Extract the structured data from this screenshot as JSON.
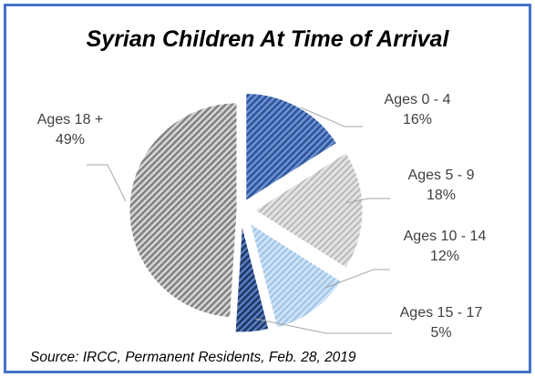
{
  "chart_data": {
    "type": "pie",
    "title": "Syrian Children At Time of Arrival",
    "source": "Source: IRCC, Permanent Residents, Feb. 28, 2019",
    "slices": [
      {
        "label": "Ages 0 - 4",
        "value": 16,
        "percent_label": "16%",
        "color": "#4472c4",
        "pattern": "dark-dots"
      },
      {
        "label": "Ages 5 - 9",
        "value": 18,
        "percent_label": "18%",
        "color": "#a6a6a6",
        "pattern": "light-diagonal"
      },
      {
        "label": "Ages 10 - 14",
        "value": 12,
        "percent_label": "12%",
        "color": "#9dc3e6",
        "pattern": "light-dots"
      },
      {
        "label": "Ages 15 - 17",
        "value": 5,
        "percent_label": "5%",
        "color": "#2f5597",
        "pattern": "dark-dots"
      },
      {
        "label": "Ages 18 +",
        "value": 49,
        "percent_label": "49%",
        "color": "#7f7f7f",
        "pattern": "dark-diagonal"
      }
    ],
    "legend": "none",
    "data_labels": "outside-with-leader-lines"
  },
  "frame": {
    "border_color": "#4472c4"
  }
}
